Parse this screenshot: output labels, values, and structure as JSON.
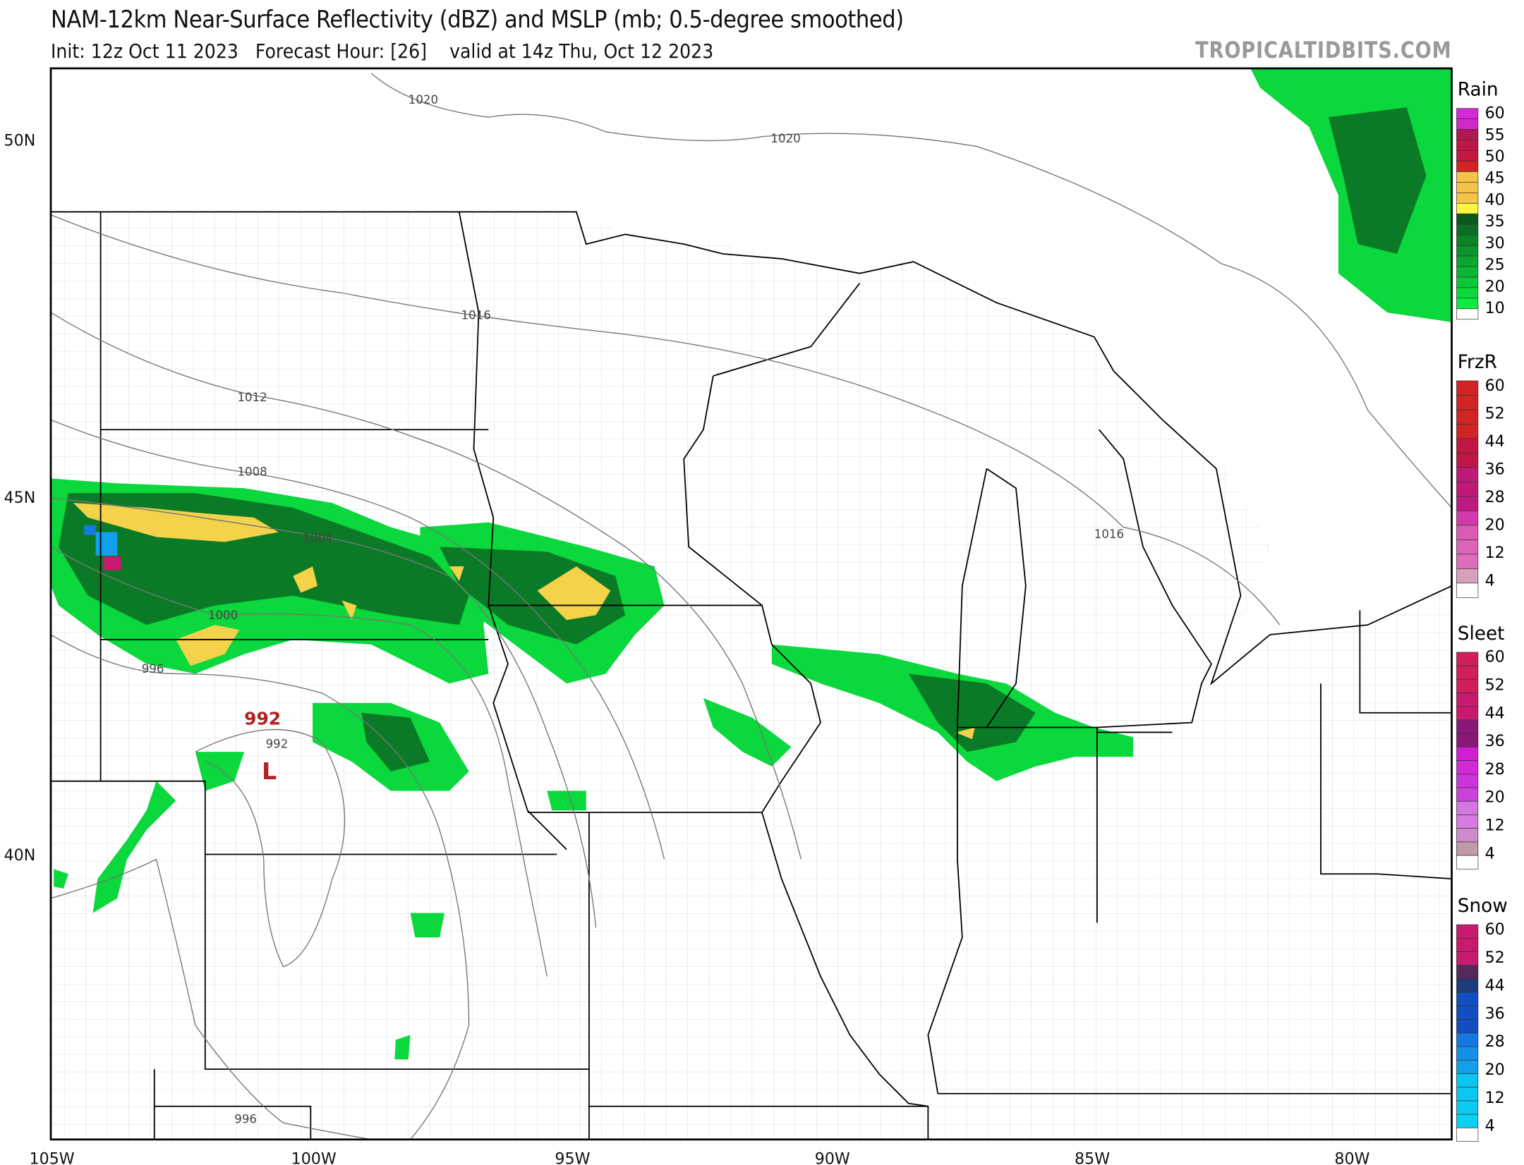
{
  "title": "NAM-12km Near-Surface Reflectivity (dBZ) and MSLP (mb; 0.5-degree smoothed)",
  "subtitle": "Init: 12z Oct 11 2023   Forecast Hour: [26]    valid at 14z Thu, Oct 12 2023",
  "watermark": "TROPICALTIDBITS.COM",
  "map": {
    "lon_labels": [
      "105W",
      "100W",
      "95W",
      "90W",
      "85W",
      "80W"
    ],
    "lat_labels": [
      "50N",
      "45N",
      "40N"
    ],
    "isobar_labels": [
      "1020",
      "1020",
      "1016",
      "1012",
      "1008",
      "1004",
      "1000",
      "996",
      "992",
      "996",
      "1016"
    ],
    "low_center": {
      "symbol": "L",
      "value": "992",
      "color": "#b22222"
    }
  },
  "legend": [
    {
      "title": "Rain",
      "labels": [
        "60",
        "55",
        "50",
        "45",
        "40",
        "35",
        "30",
        "25",
        "20",
        "10"
      ],
      "colors": [
        "#d528d8",
        "#d22ac8",
        "#b0184f",
        "#c01646",
        "#c4183f",
        "#d52222",
        "#f4c34a",
        "#f4c34a",
        "#f4c34a",
        "#fef540",
        "#0a5a1e",
        "#0b6e24",
        "#0b8428",
        "#0a962c",
        "#0aa830",
        "#0ab634",
        "#0ac838",
        "#0ada3c",
        "#0aec40",
        "#ffffff"
      ]
    },
    {
      "title": "FrzR",
      "labels": [
        "60",
        "52",
        "44",
        "36",
        "28",
        "20",
        "12",
        "4"
      ],
      "colors": [
        "#d22424",
        "#d22424",
        "#d22424",
        "#d22424",
        "#c01640",
        "#c01646",
        "#bf1a78",
        "#bf1a78",
        "#c01a82",
        "#d23aac",
        "#db5ab6",
        "#dd62b8",
        "#de6cbc",
        "#d6a0bc",
        "#ffffff"
      ]
    },
    {
      "title": "Sleet",
      "labels": [
        "60",
        "52",
        "44",
        "36",
        "28",
        "20",
        "12",
        "4"
      ],
      "colors": [
        "#d11f5a",
        "#d11f5a",
        "#d11f5a",
        "#c81a6e",
        "#c81a6e",
        "#8b1778",
        "#8b1778",
        "#d11ed5",
        "#d22ad8",
        "#cc34dc",
        "#cc40dc",
        "#d476e0",
        "#d67ce0",
        "#cc8ccc",
        "#c09aa6",
        "#ffffff"
      ]
    },
    {
      "title": "Snow",
      "labels": [
        "60",
        "52",
        "44",
        "36",
        "28",
        "20",
        "12",
        "4"
      ],
      "colors": [
        "#c81a6e",
        "#c81a6e",
        "#c81a6e",
        "#542a5a",
        "#1e3c7a",
        "#124ec2",
        "#124ec2",
        "#124ec2",
        "#1478e0",
        "#1490e8",
        "#12a0ec",
        "#0cc4f0",
        "#0cc8f0",
        "#0ccaf0",
        "#0cd0f0",
        "#ffffff"
      ]
    }
  ]
}
